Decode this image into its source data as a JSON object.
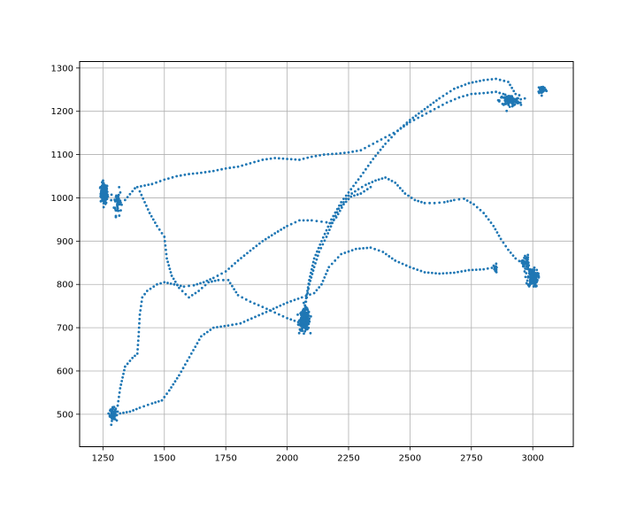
{
  "chart_data": {
    "type": "scatter",
    "title": "",
    "xlabel": "",
    "ylabel": "",
    "xlim": [
      1155,
      3165
    ],
    "ylim": [
      425,
      1315
    ],
    "xticks": [
      1250,
      1500,
      1750,
      2000,
      2250,
      2500,
      2750,
      3000
    ],
    "yticks": [
      500,
      600,
      700,
      800,
      900,
      1000,
      1100,
      1200,
      1300
    ],
    "grid": true,
    "marker_color": "#1f77b4",
    "legend": "none",
    "series": [
      {
        "paths": [
          [
            [
              1250,
              1000
            ],
            [
              1300,
              992
            ],
            [
              1340,
              995
            ],
            [
              1380,
              1022
            ],
            [
              1400,
              1015
            ],
            [
              1440,
              965
            ],
            [
              1470,
              935
            ],
            [
              1500,
              910
            ],
            [
              1510,
              860
            ],
            [
              1530,
              820
            ],
            [
              1560,
              792
            ],
            [
              1600,
              770
            ],
            [
              1640,
              785
            ],
            [
              1680,
              805
            ],
            [
              1720,
              810
            ],
            [
              1760,
              810
            ],
            [
              1800,
              775
            ],
            [
              1850,
              760
            ],
            [
              1900,
              748
            ],
            [
              1950,
              735
            ],
            [
              2000,
              722
            ],
            [
              2060,
              710
            ]
          ],
          [
            [
              1300,
              510
            ],
            [
              1320,
              502
            ],
            [
              1360,
              506
            ],
            [
              1400,
              515
            ],
            [
              1450,
              525
            ],
            [
              1490,
              532
            ],
            [
              1520,
              555
            ],
            [
              1560,
              590
            ],
            [
              1610,
              640
            ],
            [
              1650,
              680
            ],
            [
              1700,
              700
            ],
            [
              1760,
              705
            ],
            [
              1810,
              710
            ],
            [
              1870,
              725
            ],
            [
              1930,
              740
            ],
            [
              2000,
              758
            ],
            [
              2060,
              770
            ],
            [
              2110,
              780
            ],
            [
              2140,
              800
            ],
            [
              2170,
              840
            ],
            [
              2220,
              870
            ],
            [
              2280,
              882
            ],
            [
              2340,
              885
            ],
            [
              2390,
              875
            ],
            [
              2440,
              855
            ],
            [
              2500,
              840
            ],
            [
              2560,
              828
            ],
            [
              2620,
              825
            ],
            [
              2680,
              827
            ],
            [
              2740,
              833
            ],
            [
              2800,
              835
            ],
            [
              2850,
              840
            ]
          ],
          [
            [
              2060,
              710
            ],
            [
              2075,
              760
            ],
            [
              2090,
              810
            ],
            [
              2110,
              860
            ],
            [
              2140,
              900
            ],
            [
              2180,
              950
            ],
            [
              2220,
              990
            ],
            [
              2260,
              1020
            ],
            [
              2300,
              1050
            ],
            [
              2350,
              1090
            ],
            [
              2400,
              1125
            ],
            [
              2450,
              1155
            ],
            [
              2500,
              1180
            ],
            [
              2560,
              1205
            ],
            [
              2620,
              1230
            ],
            [
              2680,
              1252
            ],
            [
              2740,
              1265
            ],
            [
              2800,
              1272
            ],
            [
              2850,
              1275
            ],
            [
              2900,
              1268
            ],
            [
              2930,
              1240
            ],
            [
              2950,
              1220
            ]
          ],
          [
            [
              2060,
              710
            ],
            [
              2070,
              740
            ],
            [
              2080,
              770
            ],
            [
              2090,
              800
            ],
            [
              2110,
              840
            ],
            [
              2130,
              875
            ],
            [
              2160,
              910
            ],
            [
              2190,
              950
            ],
            [
              2210,
              975
            ],
            [
              2250,
              1005
            ],
            [
              2290,
              1020
            ],
            [
              2320,
              1030
            ],
            [
              2360,
              1040
            ],
            [
              2400,
              1047
            ],
            [
              2440,
              1035
            ],
            [
              2480,
              1010
            ],
            [
              2520,
              995
            ],
            [
              2560,
              988
            ],
            [
              2600,
              988
            ],
            [
              2640,
              990
            ],
            [
              2680,
              995
            ],
            [
              2720,
              998
            ],
            [
              2760,
              985
            ],
            [
              2800,
              965
            ],
            [
              2840,
              935
            ],
            [
              2870,
              905
            ],
            [
              2900,
              880
            ],
            [
              2930,
              860
            ],
            [
              2960,
              848
            ],
            [
              2990,
              835
            ],
            [
              3020,
              818
            ]
          ],
          [
            [
              1310,
              520
            ],
            [
              1320,
              560
            ],
            [
              1340,
              610
            ],
            [
              1370,
              630
            ],
            [
              1390,
              640
            ],
            [
              1395,
              680
            ],
            [
              1400,
              730
            ],
            [
              1410,
              770
            ],
            [
              1430,
              785
            ],
            [
              1470,
              800
            ],
            [
              1500,
              805
            ],
            [
              1540,
              800
            ],
            [
              1580,
              795
            ],
            [
              1620,
              798
            ],
            [
              1660,
              805
            ],
            [
              1700,
              815
            ],
            [
              1750,
              830
            ],
            [
              1800,
              855
            ],
            [
              1850,
              878
            ],
            [
              1900,
              900
            ],
            [
              1950,
              918
            ],
            [
              2000,
              935
            ],
            [
              2050,
              948
            ],
            [
              2100,
              948
            ],
            [
              2140,
              945
            ],
            [
              2180,
              942
            ],
            [
              2200,
              955
            ],
            [
              2230,
              985
            ],
            [
              2260,
              1003
            ],
            [
              2300,
              1010
            ],
            [
              2340,
              1025
            ]
          ],
          [
            [
              1390,
              1025
            ],
            [
              1450,
              1032
            ],
            [
              1500,
              1042
            ],
            [
              1550,
              1050
            ],
            [
              1600,
              1055
            ],
            [
              1650,
              1058
            ],
            [
              1700,
              1062
            ],
            [
              1750,
              1068
            ],
            [
              1800,
              1072
            ],
            [
              1850,
              1080
            ],
            [
              1900,
              1088
            ],
            [
              1950,
              1092
            ],
            [
              2000,
              1090
            ],
            [
              2050,
              1088
            ],
            [
              2100,
              1095
            ],
            [
              2150,
              1100
            ],
            [
              2200,
              1102
            ],
            [
              2250,
              1105
            ],
            [
              2300,
              1110
            ],
            [
              2350,
              1125
            ],
            [
              2400,
              1140
            ],
            [
              2450,
              1155
            ],
            [
              2500,
              1175
            ],
            [
              2550,
              1190
            ],
            [
              2600,
              1205
            ],
            [
              2650,
              1220
            ],
            [
              2700,
              1232
            ],
            [
              2750,
              1240
            ],
            [
              2800,
              1242
            ],
            [
              2850,
              1245
            ],
            [
              2880,
              1240
            ]
          ]
        ],
        "clusters": [
          {
            "cx": 1255,
            "cy": 1010,
            "sx": 12,
            "sy": 20,
            "n": 150
          },
          {
            "cx": 1310,
            "cy": 990,
            "sx": 12,
            "sy": 25,
            "n": 45
          },
          {
            "cx": 1290,
            "cy": 500,
            "sx": 10,
            "sy": 12,
            "n": 80
          },
          {
            "cx": 2072,
            "cy": 718,
            "sx": 17,
            "sy": 20,
            "n": 230
          },
          {
            "cx": 2905,
            "cy": 1225,
            "sx": 33,
            "sy": 10,
            "n": 110
          },
          {
            "cx": 3038,
            "cy": 1250,
            "sx": 14,
            "sy": 8,
            "n": 45
          },
          {
            "cx": 3000,
            "cy": 815,
            "sx": 17,
            "sy": 17,
            "n": 140
          },
          {
            "cx": 2970,
            "cy": 850,
            "sx": 12,
            "sy": 15,
            "n": 40
          },
          {
            "cx": 2848,
            "cy": 835,
            "sx": 6,
            "sy": 10,
            "n": 20
          }
        ]
      }
    ]
  }
}
